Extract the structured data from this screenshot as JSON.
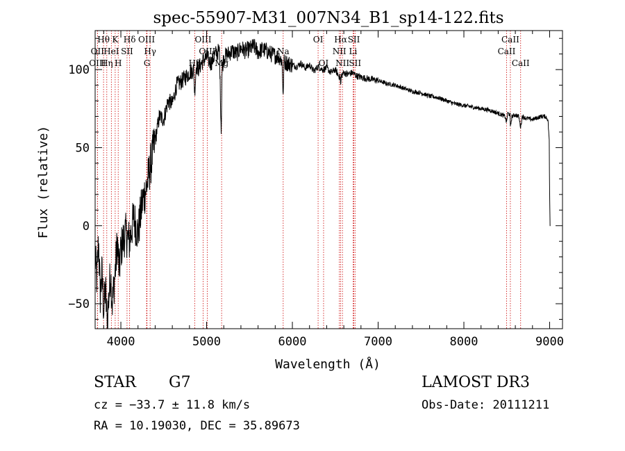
{
  "chart_data": {
    "type": "line",
    "title": "spec-55907-M31_007N34_B1_sp14-122.fits",
    "xlabel": "Wavelength (Å)",
    "ylabel": "Flux (relative)",
    "xlim": [
      3700,
      9150
    ],
    "ylim": [
      -66,
      125
    ],
    "xticks": [
      4000,
      5000,
      6000,
      7000,
      8000,
      9000
    ],
    "yticks": [
      -50,
      0,
      50,
      100
    ],
    "xtick_labels": [
      "4000",
      "5000",
      "6000",
      "7000",
      "8000",
      "9000"
    ],
    "ytick_labels": [
      "−50",
      "0",
      "50",
      "100"
    ],
    "grid": false,
    "series": [
      {
        "name": "spectrum",
        "x": [
          3700,
          3720,
          3740,
          3760,
          3780,
          3800,
          3820,
          3840,
          3860,
          3880,
          3900,
          3920,
          3940,
          3960,
          3980,
          4000,
          4050,
          4100,
          4150,
          4200,
          4250,
          4300,
          4350,
          4400,
          4450,
          4500,
          4550,
          4600,
          4650,
          4700,
          4750,
          4800,
          4850,
          4860,
          4880,
          4900,
          4950,
          5000,
          5050,
          5100,
          5150,
          5170,
          5180,
          5200,
          5250,
          5300,
          5350,
          5400,
          5450,
          5500,
          5550,
          5600,
          5650,
          5700,
          5750,
          5800,
          5850,
          5880,
          5890,
          5895,
          5900,
          5950,
          6000,
          6050,
          6100,
          6150,
          6200,
          6250,
          6300,
          6350,
          6400,
          6450,
          6500,
          6540,
          6560,
          6563,
          6570,
          6600,
          6650,
          6700,
          6750,
          6800,
          6900,
          7000,
          7100,
          7200,
          7300,
          7400,
          7500,
          7600,
          7700,
          7800,
          7900,
          8000,
          8100,
          8200,
          8300,
          8400,
          8480,
          8498,
          8510,
          8540,
          8542,
          8560,
          8600,
          8640,
          8662,
          8680,
          8720,
          8800,
          8850,
          8900,
          8950,
          8980,
          8995,
          9000,
          9005
        ],
        "y": [
          -20,
          -35,
          -10,
          -45,
          -30,
          -55,
          -40,
          -62,
          -45,
          -30,
          -50,
          -38,
          -25,
          -10,
          -30,
          -15,
          -5,
          -10,
          5,
          -5,
          15,
          25,
          40,
          55,
          70,
          68,
          80,
          78,
          90,
          92,
          95,
          98,
          100,
          85,
          103,
          100,
          105,
          108,
          104,
          110,
          112,
          60,
          100,
          108,
          110,
          112,
          110,
          114,
          112,
          113,
          115,
          111,
          113,
          112,
          110,
          109,
          108,
          105,
          88,
          80,
          105,
          104,
          103,
          102,
          104,
          101,
          103,
          99,
          102,
          100,
          101,
          98,
          100,
          96,
          95,
          88,
          96,
          98,
          97,
          98,
          96,
          95,
          94,
          93,
          91,
          90,
          88,
          86,
          85,
          83,
          82,
          80,
          78,
          77,
          76,
          75,
          74,
          72,
          70,
          66,
          72,
          71,
          63,
          70,
          71,
          70,
          63,
          70,
          69,
          68,
          69,
          70,
          70,
          68,
          55,
          20,
          0
        ]
      }
    ],
    "spectral_lines": [
      {
        "label": "Hθ",
        "wavelength": 3798,
        "row": 0
      },
      {
        "label": "OII",
        "wavelength": 3727,
        "row": 1
      },
      {
        "label": "OIII",
        "wavelength": 3727,
        "row": 2
      },
      {
        "label": "Hη",
        "wavelength": 3836,
        "row": 2
      },
      {
        "label": "HeI",
        "wavelength": 3889,
        "row": 1
      },
      {
        "label": "K",
        "wavelength": 3934,
        "row": 0
      },
      {
        "label": "H",
        "wavelength": 3969,
        "row": 2
      },
      {
        "label": "SII",
        "wavelength": 4072,
        "row": 1
      },
      {
        "label": "Hδ",
        "wavelength": 4102,
        "row": 0
      },
      {
        "label": "OIII",
        "wavelength": 4300,
        "row": 0
      },
      {
        "label": "Hγ",
        "wavelength": 4341,
        "row": 1
      },
      {
        "label": "G",
        "wavelength": 4305,
        "row": 2
      },
      {
        "label": "Hβ",
        "wavelength": 4861,
        "row": 2
      },
      {
        "label": "OIII",
        "wavelength": 4959,
        "row": 0
      },
      {
        "label": "OIII",
        "wavelength": 5007,
        "row": 1
      },
      {
        "label": "Mg",
        "wavelength": 5175,
        "row": 2
      },
      {
        "label": "Na",
        "wavelength": 5893,
        "row": 1
      },
      {
        "label": "OI",
        "wavelength": 6300,
        "row": 0
      },
      {
        "label": "OI",
        "wavelength": 6364,
        "row": 2
      },
      {
        "label": "Hα",
        "wavelength": 6563,
        "row": 0
      },
      {
        "label": "NII",
        "wavelength": 6548,
        "row": 1
      },
      {
        "label": "NII",
        "wavelength": 6584,
        "row": 2
      },
      {
        "label": "SII",
        "wavelength": 6717,
        "row": 0
      },
      {
        "label": "Li",
        "wavelength": 6708,
        "row": 1
      },
      {
        "label": "SII",
        "wavelength": 6731,
        "row": 2
      },
      {
        "label": "CaII",
        "wavelength": 8542,
        "row": 0
      },
      {
        "label": "CaII",
        "wavelength": 8498,
        "row": 1
      },
      {
        "label": "CaII",
        "wavelength": 8662,
        "row": 2
      }
    ]
  },
  "info": {
    "object_class": "STAR",
    "subclass": "G7",
    "survey": "LAMOST DR3",
    "cz": "cz = −33.7 ± 11.8 km/s",
    "obs_date": "Obs-Date: 20111211",
    "coords": "RA =  10.19030, DEC =  35.89673"
  },
  "colors": {
    "spectrum": "#000000",
    "lines": "#cc0000",
    "axes": "#000000"
  }
}
